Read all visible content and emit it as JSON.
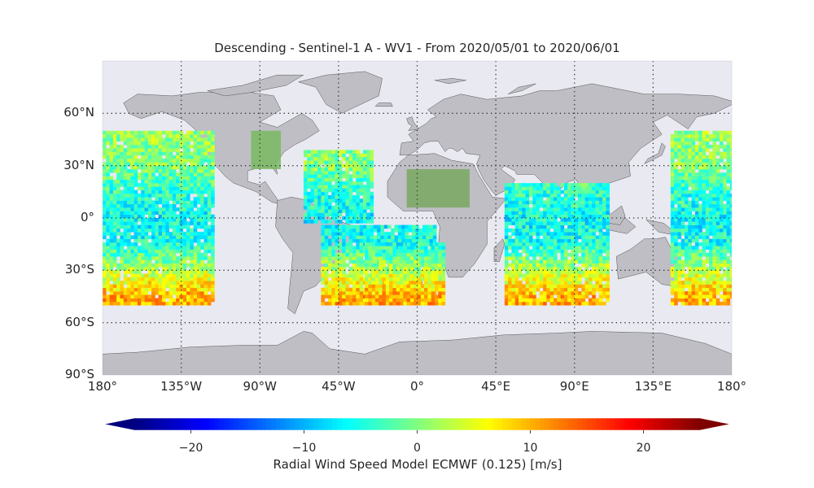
{
  "title": "Descending - Sentinel-1 A - WV1 - From 2020/05/01 to 2020/06/01",
  "map": {
    "projection": "plate-carree",
    "extent": {
      "lon": [
        -180,
        180
      ],
      "lat": [
        -90,
        90
      ]
    },
    "background_color": "#e9e9f2",
    "land_color": "#bebec4",
    "grid": {
      "style": "dotted",
      "color": "#333333"
    },
    "lat_labels": [
      "60°N",
      "30°N",
      "0°",
      "30°S",
      "60°S",
      "90°S"
    ],
    "lon_labels": [
      "180°",
      "135°W",
      "90°W",
      "45°W",
      "0°",
      "45°E",
      "90°E",
      "135°E",
      "180°"
    ],
    "land_overlay_tiles": [
      {
        "region": "North America interior",
        "color": "#7aba60"
      },
      {
        "region": "North Africa / Sahara",
        "color": "#7aa860"
      }
    ]
  },
  "chart_data": {
    "type": "heatmap",
    "variable": "Radial Wind Speed Model ECMWF (0.125) [m/s]",
    "colormap": "jet",
    "vmin": -25,
    "vmax": 25,
    "extend": "both",
    "colorbar_ticks": [
      -20,
      -10,
      0,
      10,
      20
    ],
    "colorbar_tick_labels": [
      "−20",
      "−10",
      "0",
      "10",
      "20"
    ],
    "colorbar_label": "Radial Wind Speed Model ECMWF (0.125) [m/s]",
    "coverage_lat_range": [
      -50,
      50
    ],
    "swaths": [
      {
        "region": "Pacific East",
        "lon": [
          -180,
          -116
        ],
        "lat": [
          -50,
          50
        ]
      },
      {
        "region": "North Atlantic",
        "lon": [
          -65,
          -25
        ],
        "lat": [
          -3,
          38
        ]
      },
      {
        "region": "South Atlantic",
        "lon": [
          -55,
          10
        ],
        "lat": [
          -50,
          -5
        ]
      },
      {
        "region": "South Atlantic East",
        "lon": [
          -30,
          15
        ],
        "lat": [
          -50,
          -15
        ]
      },
      {
        "region": "Indian Ocean",
        "lon": [
          50,
          110
        ],
        "lat": [
          -50,
          20
        ]
      },
      {
        "region": "Pacific West",
        "lon": [
          145,
          180
        ],
        "lat": [
          -50,
          50
        ]
      }
    ],
    "latitude_profile": [
      {
        "lat": 45,
        "mean_ms": 1
      },
      {
        "lat": 30,
        "mean_ms": 0
      },
      {
        "lat": 15,
        "mean_ms": -4
      },
      {
        "lat": 0,
        "mean_ms": -6
      },
      {
        "lat": -15,
        "mean_ms": -5
      },
      {
        "lat": -30,
        "mean_ms": 3
      },
      {
        "lat": -45,
        "mean_ms": 10
      }
    ]
  }
}
